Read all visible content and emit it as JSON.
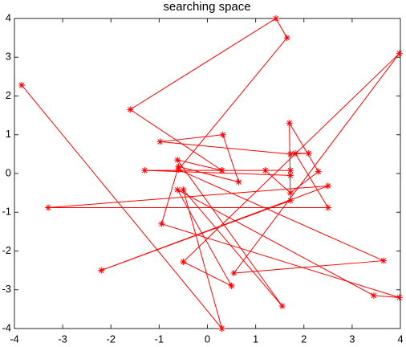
{
  "chart_data": {
    "type": "line",
    "title": "searching space",
    "x": [
      -3.85,
      0.3,
      -0.5,
      1.55,
      -0.62,
      0.3,
      1.72,
      1.72,
      -1.3,
      1.2,
      1.72,
      2.3,
      1.7,
      1.72,
      -2.2,
      2.5,
      -3.3,
      2.5,
      1.82,
      2.1,
      1.72,
      -0.98,
      0.32,
      0.65,
      -0.6,
      -0.95,
      3.98,
      3.45,
      -0.62,
      0.5,
      -0.5,
      3.98,
      0.55,
      3.65,
      -0.6,
      1.65,
      1.42,
      -1.6,
      0.3
    ],
    "values": [
      2.28,
      -4.0,
      -0.42,
      -3.42,
      0.35,
      0.08,
      0.08,
      -0.05,
      0.08,
      0.08,
      -0.5,
      0.05,
      1.3,
      -0.7,
      -2.5,
      -0.32,
      -0.88,
      -0.88,
      0.52,
      0.52,
      0.5,
      0.82,
      1.0,
      -0.22,
      0.18,
      -1.3,
      -3.2,
      -3.15,
      -0.42,
      -2.9,
      -2.28,
      3.1,
      -2.57,
      -2.25,
      0.1,
      3.5,
      4.0,
      1.65,
      0.08
    ],
    "color": "#ff0000",
    "marker": "asterisk",
    "xlim": [
      -4,
      4
    ],
    "xticks": [
      -4,
      -3,
      -2,
      -1,
      0,
      1,
      2,
      3,
      4
    ],
    "ylim": [
      -4,
      4
    ],
    "yticks": [
      -4,
      -3,
      -2,
      -1,
      0,
      1,
      2,
      3,
      4
    ]
  }
}
